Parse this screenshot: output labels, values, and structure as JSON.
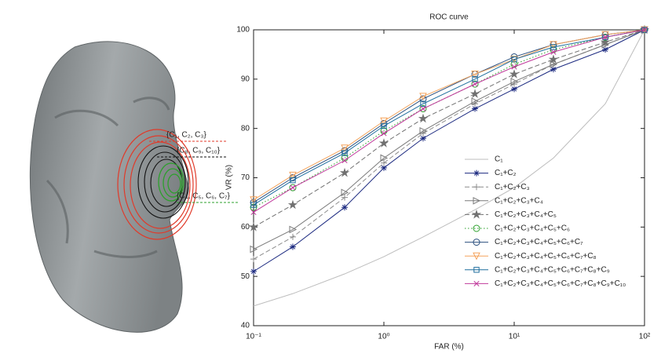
{
  "chart_data": {
    "type": "line",
    "title": "ROC curve",
    "xlabel": "FAR (%)",
    "ylabel": "VR (%)",
    "xscale": "log",
    "xlim": [
      0.1,
      100
    ],
    "xticks": [
      {
        "value": 0.1,
        "label": "10⁻¹"
      },
      {
        "value": 1,
        "label": "10⁰"
      },
      {
        "value": 10,
        "label": "10¹"
      },
      {
        "value": 100,
        "label": "10²"
      }
    ],
    "ylim": [
      40,
      100
    ],
    "yticks": [
      40,
      50,
      60,
      70,
      80,
      90,
      100
    ],
    "x": [
      0.1,
      0.2,
      0.5,
      1,
      2,
      5,
      10,
      20,
      50,
      100
    ],
    "annotations": [
      {
        "text": "{C₁, C₂, C₃}",
        "color": "#e03a2a"
      },
      {
        "text": "{C₈, C₉, C₁₀}",
        "color": "#222222"
      },
      {
        "text": "{C₄, C₅, C₆, C₇}",
        "color": "#2ca02c"
      }
    ],
    "series": [
      {
        "name": "C₁",
        "color": "#bdbdbd",
        "marker": "none",
        "linestyle": "solid",
        "values": [
          44,
          46.5,
          50.5,
          54,
          58,
          63.5,
          68,
          74,
          85,
          100
        ]
      },
      {
        "name": "C₁+C₂",
        "color": "#1c2a80",
        "marker": "star",
        "linestyle": "solid",
        "values": [
          51,
          56,
          64,
          72,
          78,
          84,
          88,
          92,
          96,
          100
        ]
      },
      {
        "name": "C₁+C₂+C₃",
        "color": "#8c8c8c",
        "marker": "plus",
        "linestyle": "dashed",
        "values": [
          53.5,
          58,
          66,
          73,
          79,
          85,
          89,
          93,
          97,
          100
        ]
      },
      {
        "name": "C₁+C₂+C₃+C₄",
        "color": "#7a7a7a",
        "marker": "triangle-right",
        "linestyle": "solid",
        "values": [
          55.5,
          59.5,
          67,
          74,
          79.5,
          85.5,
          89.5,
          93,
          97,
          100
        ]
      },
      {
        "name": "C₁+C₂+C₃+C₄+C₅",
        "color": "#707070",
        "marker": "pentagram",
        "linestyle": "dashed",
        "values": [
          60,
          64.5,
          71,
          77,
          82,
          87,
          91,
          94,
          97.5,
          100
        ]
      },
      {
        "name": "C₁+C₂+C₃+C₄+C₅+C₆",
        "color": "#2ca02c",
        "marker": "circle",
        "linestyle": "dotted",
        "values": [
          64,
          68,
          74,
          79.5,
          84,
          89,
          93,
          96,
          98.5,
          100
        ]
      },
      {
        "name": "C₁+C₂+C₃+C₄+C₅+C₆+C₇",
        "color": "#2b4f7e",
        "marker": "circle",
        "linestyle": "solid",
        "values": [
          65,
          70,
          75.5,
          81,
          86,
          91,
          94.5,
          97,
          99,
          100
        ]
      },
      {
        "name": "C₁+C₂+C₃+C₄+C₅+C₆+C₇+C₈",
        "color": "#f5a35c",
        "marker": "triangle-down",
        "linestyle": "solid",
        "values": [
          65.5,
          70.5,
          76,
          81.5,
          86.5,
          91,
          94,
          97,
          99,
          100
        ]
      },
      {
        "name": "C₁+C₂+C₃+C₄+C₅+C₆+C₇+C₈+C₉",
        "color": "#1f6e9e",
        "marker": "square",
        "linestyle": "solid",
        "values": [
          64.5,
          69.5,
          75,
          80.5,
          85,
          90,
          94,
          96.5,
          98.5,
          100
        ]
      },
      {
        "name": "C₁+C₂+C₃+C₄+C₅+C₆+C₇+C₈+C₉+C₁₀",
        "color": "#c0399b",
        "marker": "x",
        "linestyle": "solid",
        "values": [
          63,
          68,
          73.5,
          79,
          84,
          89,
          92.5,
          95.5,
          98.5,
          100
        ]
      }
    ]
  }
}
